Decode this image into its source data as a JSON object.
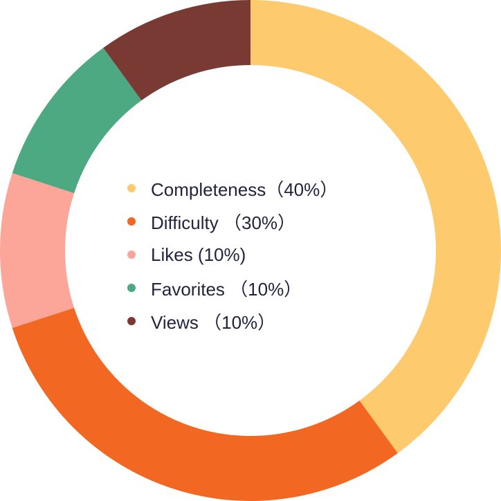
{
  "chart_data": {
    "type": "pie",
    "variant": "donut",
    "title": "",
    "slices": [
      {
        "label": "Completeness",
        "value": 40,
        "display": "Completeness（40%）",
        "color": "#FDCA6E"
      },
      {
        "label": "Difficulty",
        "value": 30,
        "display": "Difficulty （30%）",
        "color": "#F26722"
      },
      {
        "label": "Likes",
        "value": 10,
        "display": "Likes (10%)",
        "color": "#FCA699"
      },
      {
        "label": "Favorites",
        "value": 10,
        "display": "Favorites （10%）",
        "color": "#4CA982"
      },
      {
        "label": "Views",
        "value": 10,
        "display": "Views （10%）",
        "color": "#7A3A34"
      }
    ],
    "legend_position": "center"
  }
}
